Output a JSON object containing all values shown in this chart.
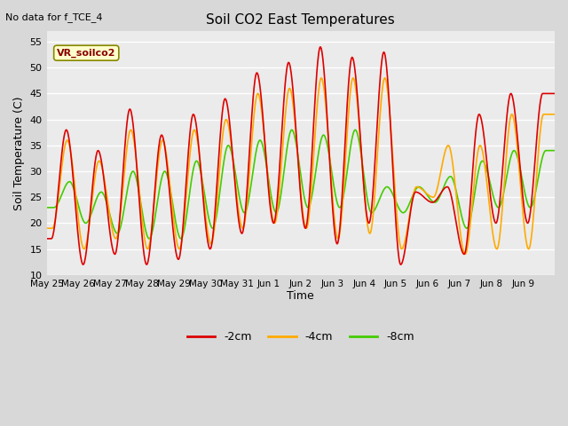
{
  "title": "Soil CO2 East Temperatures",
  "ylabel": "Soil Temperature (C)",
  "xlabel": "Time",
  "no_data_text": "No data for f_TCE_4",
  "legend_label": "VR_soilco2",
  "ylim": [
    10,
    57
  ],
  "yticks": [
    10,
    15,
    20,
    25,
    30,
    35,
    40,
    45,
    50,
    55
  ],
  "xtick_labels": [
    "May 25",
    "May 26",
    "May 27",
    "May 28",
    "May 29",
    "May 30",
    "May 31",
    "Jun 1",
    "Jun 2",
    "Jun 3",
    "Jun 4",
    "Jun 5",
    "Jun 6",
    "Jun 7",
    "Jun 8",
    "Jun 9"
  ],
  "line_colors": {
    "-2cm": "#dd0000",
    "-4cm": "#ffaa00",
    "-8cm": "#44cc00"
  },
  "background_color": "#d8d8d8",
  "plot_bg_color": "#ebebeb",
  "grid_color": "#ffffff",
  "figsize": [
    6.4,
    4.8
  ],
  "dpi": 100
}
